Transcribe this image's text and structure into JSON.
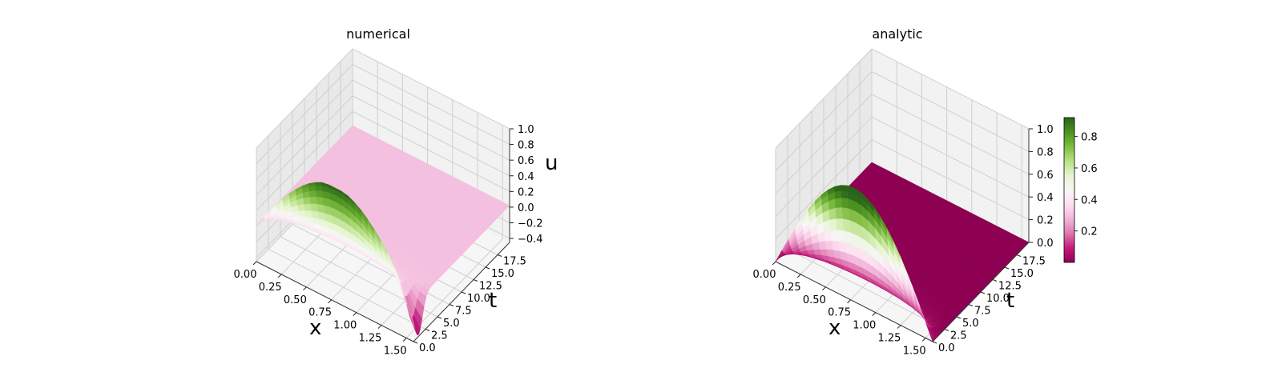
{
  "chart_data": [
    {
      "type": "surface3d",
      "title": "numerical",
      "xlabel": "x",
      "ylabel": "t",
      "zlabel": "u",
      "xlim": [
        0,
        1.5708
      ],
      "ylim": [
        0,
        20
      ],
      "zlim": [
        -0.45,
        1.0
      ],
      "x_ticks": [
        "0.00",
        "0.25",
        "0.50",
        "0.75",
        "1.00",
        "1.25",
        "1.50"
      ],
      "t_ticks": [
        "0.0",
        "2.5",
        "5.0",
        "7.5",
        "10.0",
        "12.5",
        "15.0",
        "17.5"
      ],
      "z_ticks": [
        "−0.4",
        "−0.2",
        "0.0",
        "0.2",
        "0.4",
        "0.6",
        "0.8",
        "1.0"
      ],
      "colormap": "PiYG",
      "surface": {
        "description": "u(x,t) = sin(2x)·exp(-t) approximately; peak near 1.0 at x≈0.78, t=0, drops to ~0 for t>2; dips to -0.45 near x=1.57, t≈1",
        "peak_u": 1.0,
        "min_u": -0.45
      }
    },
    {
      "type": "surface3d",
      "title": "analytic",
      "xlabel": "x",
      "ylabel": "t",
      "zlim": [
        0,
        1.0
      ],
      "xlim": [
        0,
        1.5708
      ],
      "ylim": [
        0,
        20
      ],
      "x_ticks": [
        "0.00",
        "0.25",
        "0.50",
        "0.75",
        "1.00",
        "1.25",
        "1.50"
      ],
      "t_ticks": [
        "0.0",
        "2.5",
        "5.0",
        "7.5",
        "10.0",
        "12.5",
        "15.0",
        "17.5"
      ],
      "z_ticks": [
        "0.0",
        "0.2",
        "0.4",
        "0.6",
        "0.8",
        "1.0"
      ],
      "colormap": "PiYG",
      "surface": {
        "description": "u(x,t) = sin(2x)·exp(-t); peak 1.0 at x≈0.78, t=0, decays to 0",
        "peak_u": 1.0,
        "min_u": 0.0
      },
      "colorbar": {
        "ticks": [
          "0.2",
          "0.4",
          "0.6",
          "0.8"
        ],
        "range": [
          0.0,
          0.92
        ]
      }
    }
  ],
  "colors": {
    "colormap_stops": [
      "#8e0152",
      "#c51b7d",
      "#de77ae",
      "#f1b6da",
      "#fde0ef",
      "#f7f7f7",
      "#e6f5d0",
      "#b8e186",
      "#7fbc41",
      "#4d9221",
      "#276419"
    ]
  }
}
